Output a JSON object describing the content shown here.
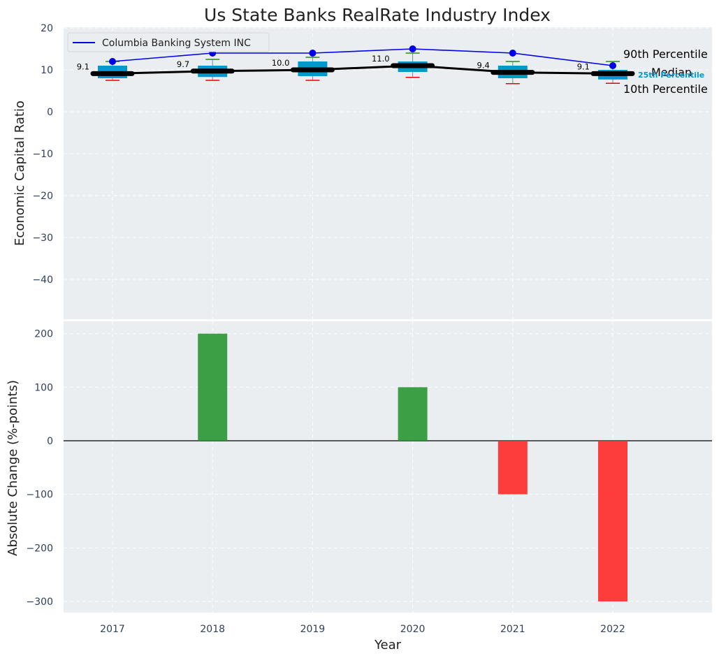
{
  "chart_data": [
    {
      "type": "box-line",
      "title": "Us State Banks RealRate Industry Index",
      "xlabel": "",
      "ylabel": "Economic Capital Ratio",
      "ylim": [
        -50,
        20
      ],
      "yticks": [
        20,
        10,
        0,
        -10,
        -20,
        -30,
        -40
      ],
      "categories": [
        "2017",
        "2018",
        "2019",
        "2020",
        "2021",
        "2022"
      ],
      "boxes": [
        {
          "p10": 7.5,
          "q1": 8.0,
          "median": 9.1,
          "q3": 11.0,
          "p90": 12.0
        },
        {
          "p10": 7.5,
          "q1": 8.3,
          "median": 9.7,
          "q3": 11.0,
          "p90": 12.5
        },
        {
          "p10": 7.5,
          "q1": 8.5,
          "median": 10.0,
          "q3": 12.0,
          "p90": 13.0
        },
        {
          "p10": 8.2,
          "q1": 9.5,
          "median": 11.0,
          "q3": 12.0,
          "p90": 14.0
        },
        {
          "p10": 6.7,
          "q1": 8.0,
          "median": 9.4,
          "q3": 11.0,
          "p90": 12.0
        },
        {
          "p10": 6.8,
          "q1": 7.7,
          "median": 9.1,
          "q3": 10.0,
          "p90": 12.0
        }
      ],
      "median_labels": [
        "9.1",
        "9.7",
        "10.0",
        "11.0",
        "9.4",
        "9.1"
      ],
      "series": [
        {
          "name": "Columbia Banking System INC",
          "values": [
            12,
            14,
            14,
            15,
            14,
            11
          ],
          "color": "#0000ee"
        }
      ],
      "legend": "top-left",
      "annotations": [
        "90th Percentile",
        "Median",
        "10th Percentile",
        "25th Percentile"
      ],
      "colors": {
        "box": "#0099cc",
        "median": "#000000",
        "p90_cap": "#228b22",
        "p10_cap": "#ee0000",
        "background": "#eaeef0"
      }
    },
    {
      "type": "bar",
      "xlabel": "Year",
      "ylabel": "Absolute Change (%-points)",
      "ylim": [
        -320,
        230
      ],
      "yticks": [
        200,
        100,
        0,
        -100,
        -200,
        -300
      ],
      "categories": [
        "2017",
        "2018",
        "2019",
        "2020",
        "2021",
        "2022"
      ],
      "values": [
        0,
        200,
        0,
        100,
        -100,
        -300
      ],
      "colors": {
        "positive": "#2a9632",
        "negative": "#ff2828"
      }
    }
  ]
}
